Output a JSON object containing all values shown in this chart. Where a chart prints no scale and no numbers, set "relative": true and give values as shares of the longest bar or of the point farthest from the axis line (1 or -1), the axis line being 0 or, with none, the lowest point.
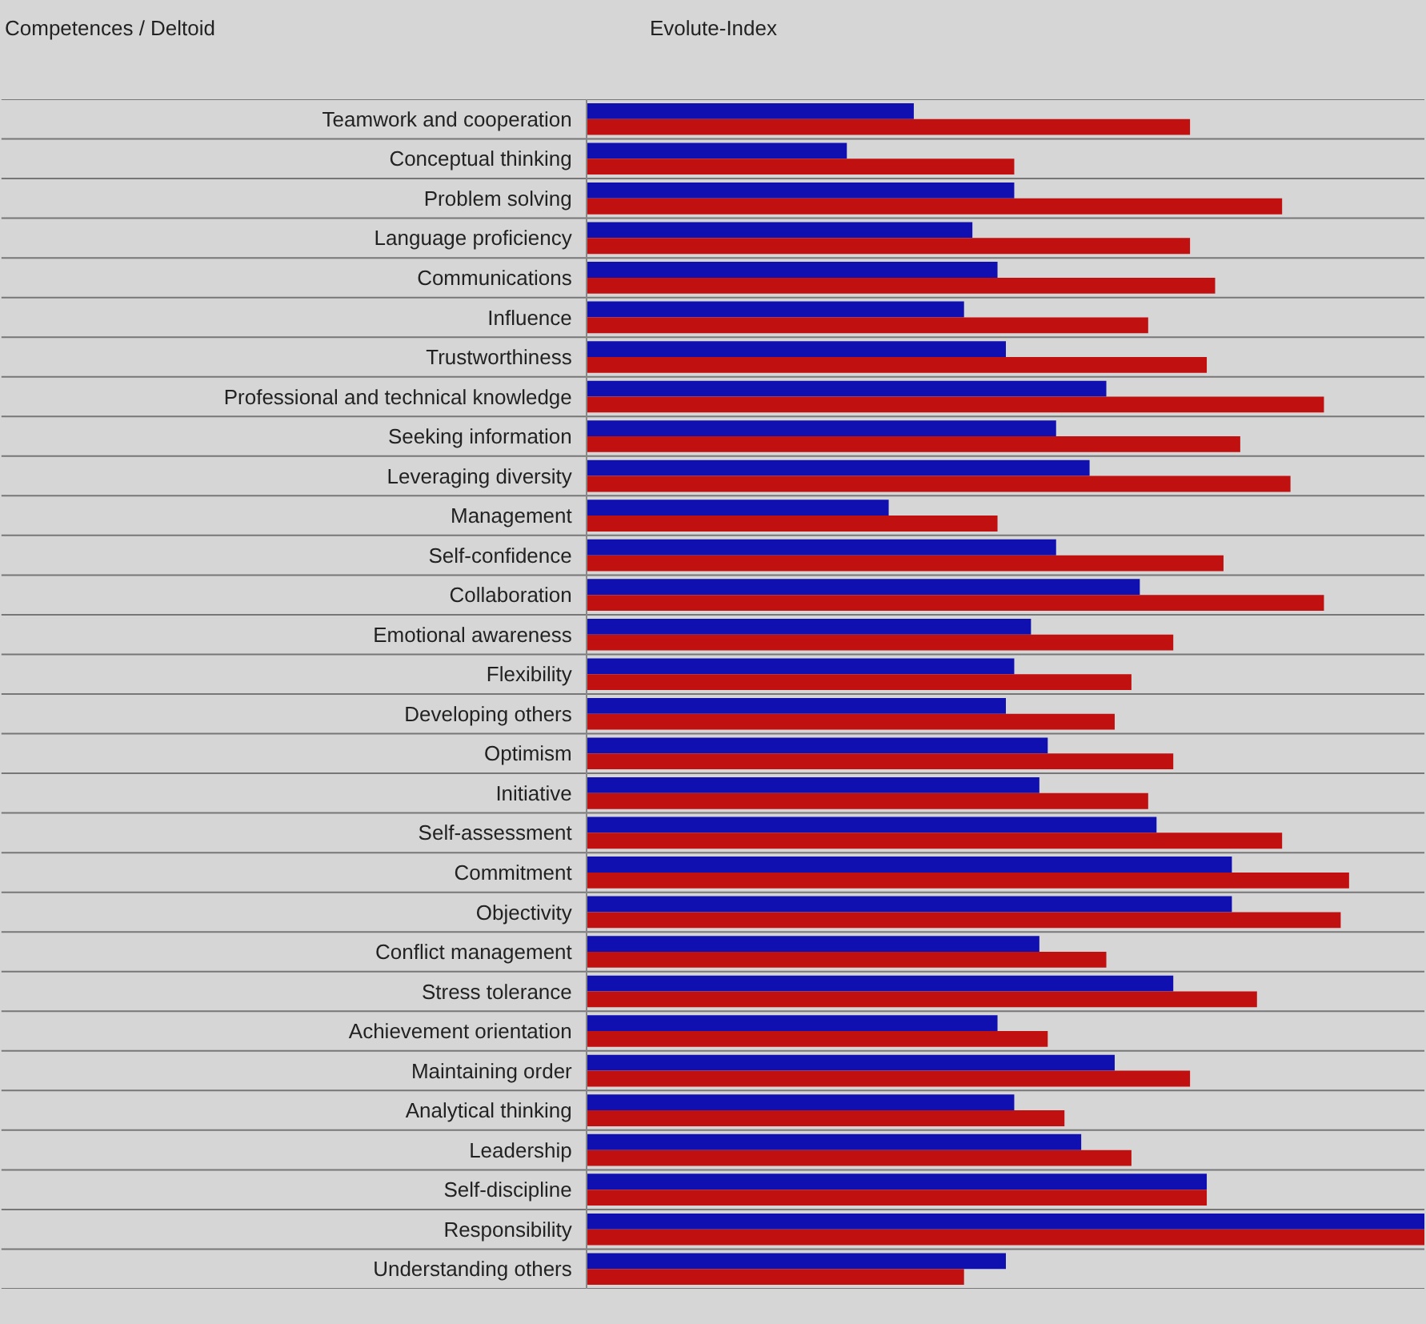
{
  "chart_data": {
    "type": "bar",
    "orientation": "horizontal",
    "relative": true,
    "grid": "y",
    "ylabel": "Competences / Deltoid",
    "xlabel": "Evolute-Index",
    "categories": [
      "Teamwork and cooperation",
      "Conceptual thinking",
      "Problem solving",
      "Language proficiency",
      "Communications",
      "Influence",
      "Trustworthiness",
      "Professional and technical knowledge",
      "Seeking information",
      "Leveraging diversity",
      "Management",
      "Self-confidence",
      "Collaboration",
      "Emotional awareness",
      "Flexibility",
      "Developing others",
      "Optimism",
      "Initiative",
      "Self-assessment",
      "Commitment",
      "Objectivity",
      "Conflict management",
      "Stress tolerance",
      "Achievement orientation",
      "Maintaining order",
      "Analytical thinking",
      "Leadership",
      "Self-discipline",
      "Responsibility",
      "Understanding others"
    ],
    "series": [
      {
        "color": "#1010b0",
        "values": [
          0.39,
          0.31,
          0.51,
          0.46,
          0.49,
          0.45,
          0.5,
          0.62,
          0.56,
          0.6,
          0.36,
          0.56,
          0.66,
          0.53,
          0.51,
          0.5,
          0.55,
          0.54,
          0.68,
          0.77,
          0.77,
          0.54,
          0.7,
          0.49,
          0.63,
          0.51,
          0.59,
          0.74,
          1,
          0.5
        ]
      },
      {
        "color": "#c01010",
        "values": [
          0.72,
          0.51,
          0.83,
          0.72,
          0.75,
          0.67,
          0.74,
          0.88,
          0.78,
          0.84,
          0.49,
          0.76,
          0.88,
          0.7,
          0.65,
          0.63,
          0.7,
          0.67,
          0.83,
          0.91,
          0.9,
          0.62,
          0.8,
          0.55,
          0.72,
          0.57,
          0.65,
          0.74,
          1,
          0.45
        ]
      }
    ]
  }
}
